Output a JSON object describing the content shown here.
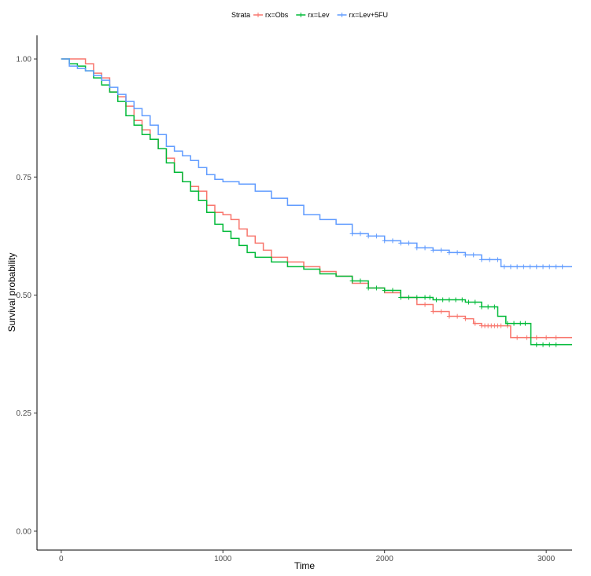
{
  "chart_data": {
    "type": "line",
    "subtype": "kaplan-meier-step",
    "title": "",
    "xlabel": "Time",
    "ylabel": "Survival probability",
    "xlim": [
      -150,
      3160
    ],
    "ylim": [
      -0.04,
      1.05
    ],
    "x_ticks": [
      0,
      1000,
      2000,
      3000
    ],
    "x_tick_labels": [
      "0",
      "1000",
      "2000",
      "3000"
    ],
    "y_ticks": [
      0,
      0.25,
      0.5,
      0.75,
      1.0
    ],
    "y_tick_labels": [
      "0.00",
      "0.25",
      "0.50",
      "0.75",
      "1.00"
    ],
    "grid": false,
    "legend": {
      "title": "Strata",
      "position": "top"
    },
    "series": [
      {
        "name": "rx=Obs",
        "color": "#F8766D",
        "points": [
          [
            0,
            1.0
          ],
          [
            100,
            1.0
          ],
          [
            150,
            0.99
          ],
          [
            200,
            0.97
          ],
          [
            250,
            0.96
          ],
          [
            300,
            0.93
          ],
          [
            350,
            0.92
          ],
          [
            400,
            0.9
          ],
          [
            450,
            0.87
          ],
          [
            500,
            0.85
          ],
          [
            550,
            0.83
          ],
          [
            600,
            0.81
          ],
          [
            650,
            0.79
          ],
          [
            700,
            0.76
          ],
          [
            750,
            0.74
          ],
          [
            800,
            0.73
          ],
          [
            850,
            0.72
          ],
          [
            900,
            0.69
          ],
          [
            950,
            0.675
          ],
          [
            1000,
            0.67
          ],
          [
            1050,
            0.66
          ],
          [
            1100,
            0.64
          ],
          [
            1150,
            0.625
          ],
          [
            1200,
            0.61
          ],
          [
            1250,
            0.595
          ],
          [
            1300,
            0.58
          ],
          [
            1400,
            0.57
          ],
          [
            1500,
            0.56
          ],
          [
            1600,
            0.55
          ],
          [
            1700,
            0.54
          ],
          [
            1800,
            0.525
          ],
          [
            1900,
            0.515
          ],
          [
            2000,
            0.505
          ],
          [
            2100,
            0.495
          ],
          [
            2200,
            0.48
          ],
          [
            2300,
            0.465
          ],
          [
            2400,
            0.455
          ],
          [
            2500,
            0.45
          ],
          [
            2550,
            0.44
          ],
          [
            2600,
            0.435
          ],
          [
            2700,
            0.435
          ],
          [
            2780,
            0.41
          ],
          [
            3160,
            0.41
          ]
        ],
        "censor_x": [
          2250,
          2300,
          2350,
          2400,
          2450,
          2500,
          2560,
          2600,
          2620,
          2640,
          2660,
          2680,
          2700,
          2720,
          2760,
          2820,
          2880,
          2940,
          3000,
          3060
        ]
      },
      {
        "name": "rx=Lev",
        "color": "#00BA38",
        "points": [
          [
            0,
            1.0
          ],
          [
            50,
            0.99
          ],
          [
            100,
            0.985
          ],
          [
            150,
            0.975
          ],
          [
            200,
            0.96
          ],
          [
            250,
            0.945
          ],
          [
            300,
            0.93
          ],
          [
            350,
            0.91
          ],
          [
            400,
            0.88
          ],
          [
            450,
            0.86
          ],
          [
            500,
            0.84
          ],
          [
            550,
            0.83
          ],
          [
            600,
            0.81
          ],
          [
            650,
            0.78
          ],
          [
            700,
            0.76
          ],
          [
            750,
            0.74
          ],
          [
            800,
            0.72
          ],
          [
            850,
            0.7
          ],
          [
            900,
            0.675
          ],
          [
            950,
            0.65
          ],
          [
            1000,
            0.635
          ],
          [
            1050,
            0.62
          ],
          [
            1100,
            0.605
          ],
          [
            1150,
            0.59
          ],
          [
            1200,
            0.58
          ],
          [
            1300,
            0.57
          ],
          [
            1400,
            0.56
          ],
          [
            1500,
            0.555
          ],
          [
            1600,
            0.545
          ],
          [
            1700,
            0.54
          ],
          [
            1800,
            0.53
          ],
          [
            1900,
            0.515
          ],
          [
            2000,
            0.51
          ],
          [
            2100,
            0.495
          ],
          [
            2300,
            0.49
          ],
          [
            2400,
            0.49
          ],
          [
            2500,
            0.485
          ],
          [
            2600,
            0.475
          ],
          [
            2700,
            0.455
          ],
          [
            2750,
            0.44
          ],
          [
            2900,
            0.44
          ],
          [
            2905,
            0.395
          ],
          [
            3160,
            0.395
          ]
        ],
        "censor_x": [
          1800,
          1850,
          1900,
          1950,
          2000,
          2050,
          2100,
          2150,
          2200,
          2250,
          2280,
          2320,
          2360,
          2400,
          2440,
          2480,
          2520,
          2560,
          2600,
          2640,
          2680,
          2760,
          2800,
          2840,
          2870,
          2940,
          2980,
          3020,
          3060
        ]
      },
      {
        "name": "rx=Lev+5FU",
        "color": "#619CFF",
        "points": [
          [
            0,
            1.0
          ],
          [
            50,
            0.985
          ],
          [
            100,
            0.98
          ],
          [
            150,
            0.975
          ],
          [
            200,
            0.965
          ],
          [
            250,
            0.955
          ],
          [
            300,
            0.94
          ],
          [
            350,
            0.925
          ],
          [
            400,
            0.91
          ],
          [
            450,
            0.895
          ],
          [
            500,
            0.88
          ],
          [
            550,
            0.86
          ],
          [
            600,
            0.84
          ],
          [
            650,
            0.815
          ],
          [
            700,
            0.805
          ],
          [
            750,
            0.795
          ],
          [
            800,
            0.785
          ],
          [
            850,
            0.77
          ],
          [
            900,
            0.755
          ],
          [
            950,
            0.745
          ],
          [
            1000,
            0.74
          ],
          [
            1100,
            0.735
          ],
          [
            1200,
            0.72
          ],
          [
            1300,
            0.705
          ],
          [
            1400,
            0.69
          ],
          [
            1500,
            0.67
          ],
          [
            1600,
            0.66
          ],
          [
            1700,
            0.65
          ],
          [
            1800,
            0.63
          ],
          [
            1900,
            0.625
          ],
          [
            2000,
            0.615
          ],
          [
            2100,
            0.61
          ],
          [
            2200,
            0.6
          ],
          [
            2300,
            0.595
          ],
          [
            2400,
            0.59
          ],
          [
            2500,
            0.585
          ],
          [
            2600,
            0.575
          ],
          [
            2700,
            0.575
          ],
          [
            2720,
            0.56
          ],
          [
            3160,
            0.56
          ]
        ],
        "censor_x": [
          1800,
          1850,
          1900,
          1950,
          2000,
          2050,
          2100,
          2150,
          2200,
          2250,
          2300,
          2350,
          2400,
          2450,
          2500,
          2550,
          2600,
          2650,
          2700,
          2740,
          2780,
          2820,
          2860,
          2900,
          2940,
          2980,
          3020,
          3060,
          3100
        ]
      }
    ]
  }
}
